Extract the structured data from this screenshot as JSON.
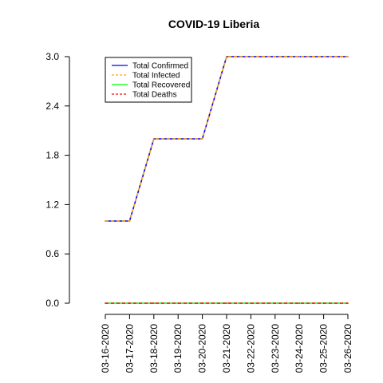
{
  "chart_data": {
    "type": "line",
    "title": "COVID-19 Liberia",
    "xlabel": "",
    "ylabel": "",
    "x": [
      "03-16-2020",
      "03-17-2020",
      "03-18-2020",
      "03-19-2020",
      "03-20-2020",
      "03-21-2020",
      "03-22-2020",
      "03-23-2020",
      "03-24-2020",
      "03-25-2020",
      "03-26-2020"
    ],
    "ylim": [
      0,
      3
    ],
    "yticks": [
      "0.0",
      "0.6",
      "1.2",
      "1.8",
      "2.4",
      "3.0"
    ],
    "legend_position": "top-left",
    "grid": false,
    "series": [
      {
        "name": "Total Confirmed",
        "color": "#0000ff",
        "line_style": "solid",
        "values": [
          1,
          1,
          2,
          2,
          2,
          3,
          3,
          3,
          3,
          3,
          3
        ]
      },
      {
        "name": "Total Infected",
        "color": "#ffa500",
        "line_style": "dashed",
        "values": [
          1,
          1,
          2,
          2,
          2,
          3,
          3,
          3,
          3,
          3,
          3
        ]
      },
      {
        "name": "Total Recovered",
        "color": "#00ff00",
        "line_style": "solid",
        "values": [
          0,
          0,
          0,
          0,
          0,
          0,
          0,
          0,
          0,
          0,
          0
        ]
      },
      {
        "name": "Total Deaths",
        "color": "#ff0000",
        "line_style": "dashed",
        "values": [
          0,
          0,
          0,
          0,
          0,
          0,
          0,
          0,
          0,
          0,
          0
        ]
      }
    ]
  }
}
